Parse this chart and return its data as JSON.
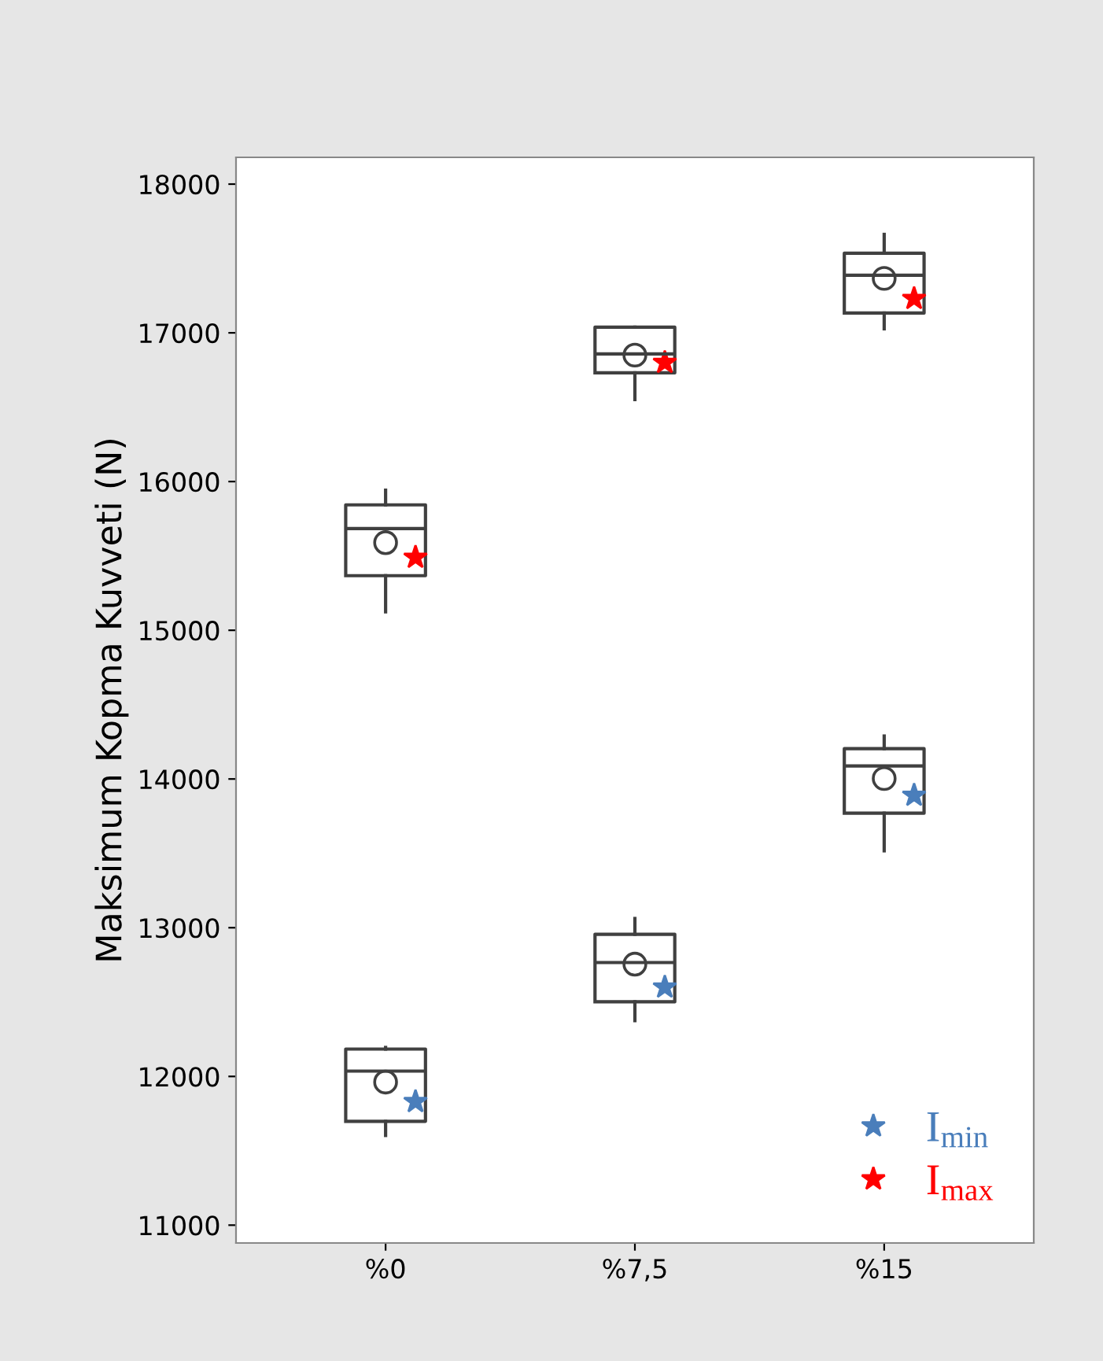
{
  "chart_data": {
    "type": "box",
    "ylabel": "Maksimum Kopma Kuvveti (N)",
    "categories": [
      "%0",
      "%7,5",
      "%15"
    ],
    "ylim": [
      10880,
      18180
    ],
    "yticks": [
      11000,
      12000,
      13000,
      14000,
      15000,
      16000,
      17000,
      18000
    ],
    "grid": false,
    "legend": "bottom right",
    "series": [
      {
        "color": "#404040",
        "boxes": [
          {
            "low": 15124,
            "q1": 15367,
            "median": 15684,
            "q3": 15843,
            "high": 15942,
            "mean": 15589
          },
          {
            "low": 16551,
            "q1": 16731,
            "median": 16858,
            "q3": 17038,
            "high": 17038,
            "mean": 16850
          },
          {
            "low": 17027,
            "q1": 17133,
            "median": 17387,
            "q3": 17535,
            "high": 17662,
            "mean": 17366
          }
        ]
      },
      {
        "color": "#404040",
        "boxes": [
          {
            "low": 11603,
            "q1": 11698,
            "median": 12036,
            "q3": 12184,
            "high": 12195,
            "mean": 11962
          },
          {
            "low": 12375,
            "q1": 12502,
            "median": 12766,
            "q3": 12956,
            "high": 13062,
            "mean": 12755
          },
          {
            "low": 13517,
            "q1": 13770,
            "median": 14088,
            "q3": 14204,
            "high": 14289,
            "mean": 14003
          }
        ]
      },
      {
        "type": "scatter",
        "name": "I$_{min}$",
        "color": "#4a7ebb",
        "marker": "star",
        "x": [
          "%0",
          "%7,5",
          "%15"
        ],
        "values": [
          11830,
          12600,
          13890
        ]
      },
      {
        "type": "scatter",
        "name": "I$_{max}$",
        "color": "#ff0000",
        "marker": "star",
        "x": [
          "%0",
          "%7,5",
          "%15"
        ],
        "values": [
          15490,
          16800,
          17230
        ]
      }
    ]
  }
}
